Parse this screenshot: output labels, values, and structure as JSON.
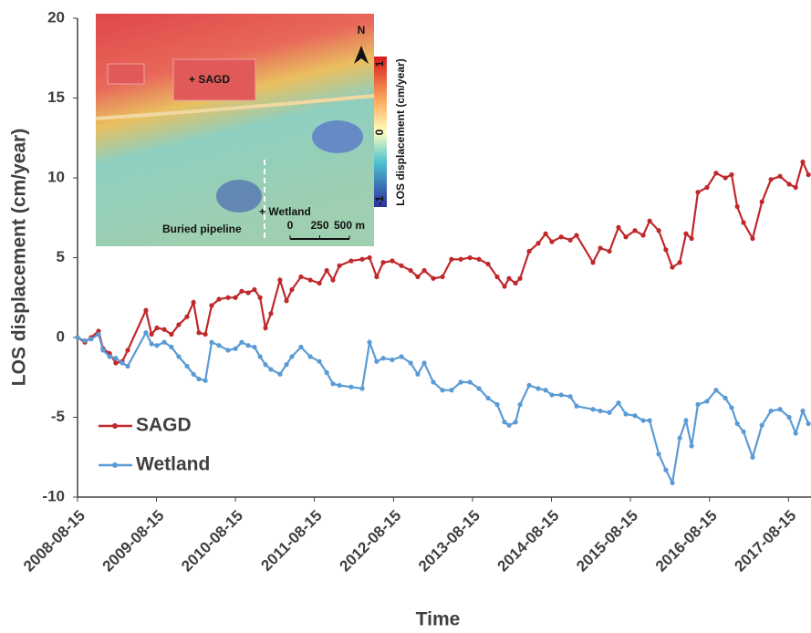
{
  "chart_data": {
    "type": "line",
    "x_label": "Time",
    "y_label": "LOS displacement (cm/year)",
    "xlim": [
      "2008-08-15",
      "2017-11-27"
    ],
    "xticks": [
      "2008-08-15",
      "2009-08-15",
      "2010-08-15",
      "2011-08-15",
      "2012-08-15",
      "2013-08-15",
      "2014-08-15",
      "2015-08-15",
      "2016-08-15",
      "2017-08-15"
    ],
    "ylim": [
      -10,
      20
    ],
    "yticks": [
      -10,
      -5,
      0,
      5,
      10,
      15,
      20
    ],
    "legend": "lower left",
    "x": [
      "2008-08-15",
      "2008-09-18",
      "2008-10-17",
      "2008-11-20",
      "2008-12-11",
      "2009-01-10",
      "2009-02-08",
      "2009-03-10",
      "2009-04-04",
      "2009-06-27",
      "2009-07-23",
      "2009-08-17",
      "2009-09-20",
      "2009-10-23",
      "2009-11-26",
      "2010-01-03",
      "2010-02-02",
      "2010-02-27",
      "2010-03-29",
      "2010-04-27",
      "2010-05-31",
      "2010-07-12",
      "2010-08-15",
      "2010-09-13",
      "2010-10-13",
      "2010-11-11",
      "2010-12-07",
      "2011-01-01",
      "2011-01-26",
      "2011-03-09",
      "2011-04-08",
      "2011-05-03",
      "2011-06-14",
      "2011-07-27",
      "2011-09-07",
      "2011-10-11",
      "2011-11-09",
      "2011-12-09",
      "2012-02-01",
      "2012-03-23",
      "2012-04-26",
      "2012-05-29",
      "2012-06-28",
      "2012-08-09",
      "2012-09-20",
      "2012-11-02",
      "2012-12-05",
      "2013-01-04",
      "2013-02-15",
      "2013-03-29",
      "2013-05-10",
      "2013-06-22",
      "2013-08-03",
      "2013-09-14",
      "2013-10-26",
      "2013-12-07",
      "2014-01-10",
      "2014-01-31",
      "2014-03-02",
      "2014-03-23",
      "2014-05-04",
      "2014-06-15",
      "2014-07-19",
      "2014-08-17",
      "2014-09-29",
      "2014-11-10",
      "2014-12-09",
      "2015-02-23",
      "2015-03-29",
      "2015-05-10",
      "2015-06-21",
      "2015-07-25",
      "2015-09-05",
      "2015-10-13",
      "2015-11-12",
      "2015-12-24",
      "2016-01-26",
      "2016-02-25",
      "2016-03-30",
      "2016-04-28",
      "2016-05-24",
      "2016-06-22",
      "2016-08-03",
      "2016-09-14",
      "2016-10-27",
      "2016-11-25",
      "2016-12-21",
      "2017-01-19",
      "2017-03-02",
      "2017-04-14",
      "2017-05-26",
      "2017-07-07",
      "2017-08-18",
      "2017-09-17",
      "2017-10-20",
      "2017-11-15"
    ],
    "series": [
      {
        "name": "SAGD",
        "color": "#c0282b",
        "values": [
          0,
          -0.3,
          0,
          0.4,
          -0.7,
          -1,
          -1.6,
          -1.5,
          -0.8,
          1.7,
          0.2,
          0.6,
          0.5,
          0.2,
          0.8,
          1.3,
          2.2,
          0.3,
          0.2,
          2,
          2.4,
          2.5,
          2.5,
          2.9,
          2.8,
          3,
          2.5,
          0.6,
          1.5,
          3.6,
          2.3,
          3,
          3.8,
          3.6,
          3.4,
          4.2,
          3.6,
          4.5,
          4.8,
          4.9,
          5,
          3.8,
          4.7,
          4.8,
          4.5,
          4.2,
          3.8,
          4.2,
          3.7,
          3.8,
          4.9,
          4.9,
          5,
          4.9,
          4.6,
          3.8,
          3.2,
          3.7,
          3.4,
          3.7,
          5.4,
          5.9,
          6.5,
          6,
          6.3,
          6.1,
          6.4,
          4.7,
          5.6,
          5.4,
          6.9,
          6.3,
          6.7,
          6.4,
          7.3,
          6.7,
          5.5,
          4.4,
          4.7,
          6.5,
          6.2,
          9.1,
          9.4,
          10.3,
          10,
          10.2,
          8.2,
          7.2,
          6.2,
          8.5,
          9.9,
          10.1,
          9.6,
          9.4,
          11,
          10.2
        ]
      },
      {
        "name": "Wetland",
        "color": "#5b9bd5",
        "values": [
          0,
          -0.2,
          -0.1,
          0.2,
          -0.8,
          -1.2,
          -1.3,
          -1.6,
          -1.8,
          0.3,
          -0.4,
          -0.5,
          -0.3,
          -0.6,
          -1.2,
          -1.8,
          -2.3,
          -2.6,
          -2.7,
          -0.3,
          -0.5,
          -0.8,
          -0.7,
          -0.3,
          -0.5,
          -0.6,
          -1.2,
          -1.7,
          -2,
          -2.3,
          -1.7,
          -1.2,
          -0.6,
          -1.2,
          -1.5,
          -2.2,
          -2.9,
          -3,
          -3.1,
          -3.2,
          -0.3,
          -1.5,
          -1.3,
          -1.4,
          -1.2,
          -1.6,
          -2.3,
          -1.6,
          -2.8,
          -3.3,
          -3.3,
          -2.8,
          -2.8,
          -3.2,
          -3.8,
          -4.2,
          -5.3,
          -5.5,
          -5.3,
          -4.2,
          -3,
          -3.2,
          -3.3,
          -3.6,
          -3.6,
          -3.7,
          -4.3,
          -4.5,
          -4.6,
          -4.7,
          -4.1,
          -4.8,
          -4.9,
          -5.2,
          -5.2,
          -7.3,
          -8.3,
          -9.1,
          -6.3,
          -5.2,
          -6.8,
          -4.2,
          -4,
          -3.3,
          -3.8,
          -4.4,
          -5.4,
          -5.9,
          -7.5,
          -5.5,
          -4.6,
          -4.5,
          -5,
          -6,
          -4.6,
          -5.4
        ]
      }
    ],
    "inset": {
      "sites": [
        "+ SAGD",
        "+ Wetland"
      ],
      "pipeline_label": "Buried pipeline",
      "north": "N",
      "scale_bar": [
        0,
        250,
        {
          "value": 500,
          "label": "500 m"
        }
      ],
      "colorbar": {
        "label": "LOS displacement (cm/year)",
        "ticks": [
          1,
          0,
          -1
        ]
      }
    }
  }
}
